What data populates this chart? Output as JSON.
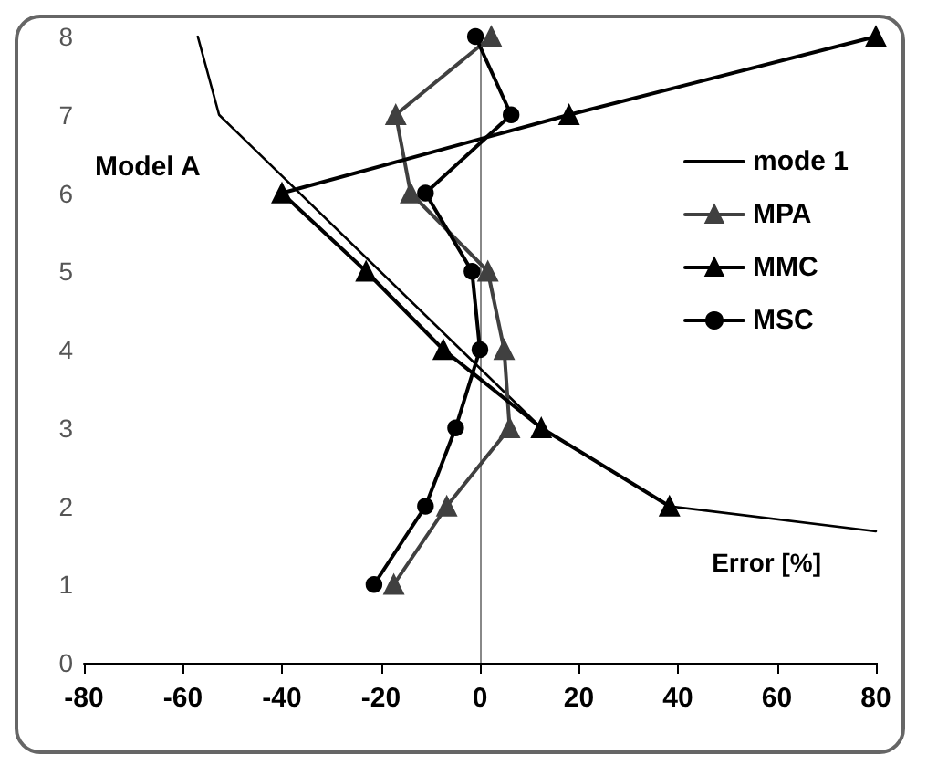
{
  "chart_data": {
    "type": "line",
    "xlabel": "Error [%]",
    "annotations": [
      "Model A"
    ],
    "xlim": [
      -80,
      80
    ],
    "xticks": [
      -80,
      -60,
      -40,
      -20,
      0,
      20,
      40,
      60,
      80
    ],
    "ylim": [
      0,
      8
    ],
    "yticks": [
      0,
      1,
      2,
      3,
      4,
      5,
      6,
      7,
      8
    ],
    "legend": "top right",
    "line_style": "solid",
    "series": [
      {
        "name": "mode 1",
        "color": "#000000",
        "marker": "none",
        "x": [
          -57,
          -52.7,
          12.4,
          38.3,
          80
        ],
        "values": [
          8,
          7,
          3,
          2,
          1.68
        ]
      },
      {
        "name": "MPA",
        "color": "#404040",
        "marker": "triangle",
        "x": [
          -17.4,
          -6.7,
          6,
          4.9,
          1.6,
          -14,
          -17,
          2.3
        ],
        "values": [
          1,
          2,
          3,
          4,
          5,
          6,
          7,
          8
        ]
      },
      {
        "name": "MMC",
        "color": "#000000",
        "marker": "triangle",
        "x": [
          38.3,
          12.4,
          -7.4,
          -23,
          -40,
          18,
          80
        ],
        "values": [
          2,
          3,
          4,
          5,
          6,
          7,
          8
        ]
      },
      {
        "name": "MSC",
        "color": "#000000",
        "marker": "circle",
        "x": [
          -21.4,
          -11,
          -4.9,
          0,
          -1.6,
          -11,
          6.3,
          -0.9
        ],
        "values": [
          1,
          2,
          3,
          4,
          5,
          6,
          7,
          8
        ]
      }
    ]
  }
}
